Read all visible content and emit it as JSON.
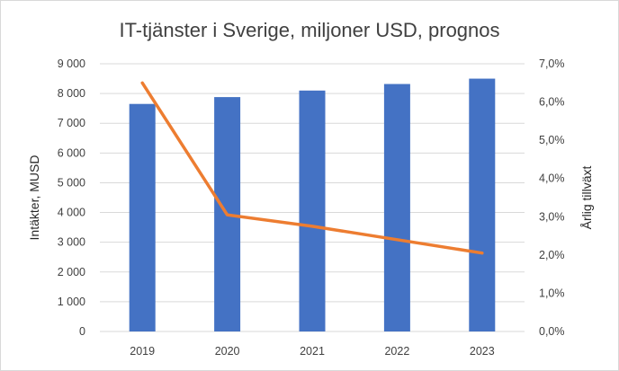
{
  "chart_data": {
    "type": "bar",
    "title": "IT-tjänster i Sverige, miljoner USD, prognos",
    "categories": [
      "2019",
      "2020",
      "2021",
      "2022",
      "2023"
    ],
    "series": [
      {
        "name": "Intäkter, MUSD",
        "type": "bar",
        "axis": "left",
        "values": [
          7650,
          7880,
          8100,
          8320,
          8500
        ],
        "color": "#4472c4"
      },
      {
        "name": "Årlig tillväxt",
        "type": "line",
        "axis": "right",
        "values": [
          6.5,
          3.05,
          2.75,
          2.4,
          2.05
        ],
        "color": "#ed7d31"
      }
    ],
    "ylabel": "Intäkter, MUSD",
    "y2label": "Årlig tillväxt",
    "ylim": [
      0,
      9000
    ],
    "y2lim": [
      0,
      7.0
    ],
    "yticks": [
      "0",
      "1 000",
      "2 000",
      "3 000",
      "4 000",
      "5 000",
      "6 000",
      "7 000",
      "8 000",
      "9 000"
    ],
    "y2ticks": [
      "0,0%",
      "1,0%",
      "2,0%",
      "3,0%",
      "4,0%",
      "5,0%",
      "6,0%",
      "7,0%"
    ],
    "grid": true,
    "gridcolor": "#d9d9d9",
    "legend": "none"
  }
}
